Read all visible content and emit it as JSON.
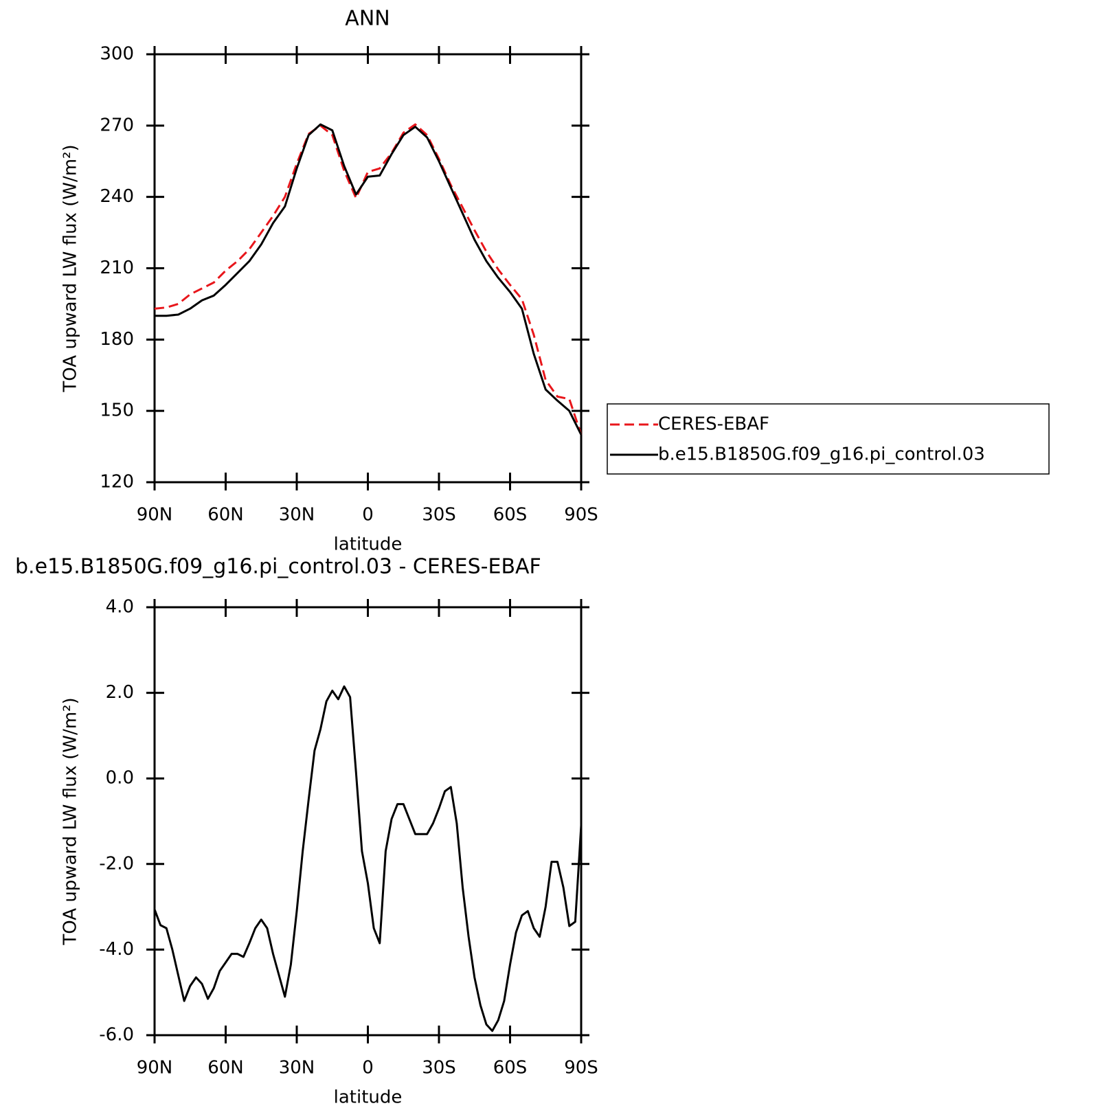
{
  "chart_data": [
    {
      "type": "line",
      "title": "ANN",
      "xlabel": "latitude",
      "ylabel": "TOA upward LW flux (W/m²)",
      "x": [
        90,
        85,
        80,
        75,
        70,
        65,
        60,
        55,
        50,
        45,
        40,
        35,
        30,
        25,
        20,
        15,
        10,
        5,
        0,
        -5,
        -10,
        -15,
        -20,
        -25,
        -30,
        -35,
        -40,
        -45,
        -50,
        -55,
        -60,
        -65,
        -70,
        -75,
        -80,
        -85,
        -90
      ],
      "xlim": [
        90,
        -90
      ],
      "xticks": [
        {
          "value": 90,
          "label": "90N"
        },
        {
          "value": 60,
          "label": "60N"
        },
        {
          "value": 30,
          "label": "30N"
        },
        0,
        {
          "value": -30,
          "label": "30S"
        },
        {
          "value": -60,
          "label": "60S"
        },
        {
          "value": -90,
          "label": "90S"
        }
      ],
      "ylim": [
        120,
        300
      ],
      "yticks": [
        120,
        150,
        180,
        210,
        240,
        270,
        300
      ],
      "legend": "right",
      "series": [
        {
          "name": "CERES-EBAF",
          "color": "#e8161b",
          "linestyle": "dashed",
          "values": [
            193,
            193.5,
            195,
            199,
            201.5,
            204,
            209,
            213,
            218,
            225,
            232,
            240,
            254,
            266.5,
            270,
            266,
            251,
            239.5,
            250.5,
            252,
            258.5,
            267,
            270.5,
            266,
            256,
            245,
            235.5,
            226,
            217,
            209.5,
            203,
            197,
            182,
            163,
            156,
            155,
            140
          ]
        },
        {
          "name": "b.e15.B1850G.f09_g16.pi_control.03",
          "color": "#000000",
          "linestyle": "solid",
          "values": [
            190,
            190,
            190.5,
            193,
            196.5,
            198.5,
            203,
            208,
            213,
            220,
            229,
            236,
            252,
            266,
            270.5,
            268,
            253,
            241,
            248.5,
            249,
            258,
            266,
            269.5,
            265,
            255,
            244,
            233,
            222,
            213,
            206,
            200,
            193,
            174,
            159,
            154.3,
            150,
            140
          ]
        }
      ]
    },
    {
      "type": "line",
      "title": "b.e15.B1850G.f09_g16.pi_control.03 - CERES-EBAF",
      "xlabel": "latitude",
      "ylabel": "TOA upward LW flux (W/m²)",
      "x": [
        90,
        87.5,
        85,
        82.5,
        80,
        77.5,
        75,
        72.5,
        70,
        67.5,
        65,
        62.5,
        60,
        57.5,
        55,
        52.5,
        50,
        47.5,
        45,
        42.5,
        40,
        37.5,
        35,
        32.5,
        30,
        27.5,
        25,
        22.5,
        20,
        17.5,
        15,
        12.5,
        10,
        7.5,
        5,
        2.5,
        0,
        -2.5,
        -5,
        -7.5,
        -10,
        -12.5,
        -15,
        -17.5,
        -20,
        -22.5,
        -25,
        -27.5,
        -30,
        -32.5,
        -35,
        -37.5,
        -40,
        -42.5,
        -45,
        -47.5,
        -50,
        -52.5,
        -55,
        -57.5,
        -60,
        -62.5,
        -65,
        -67.5,
        -70,
        -72.5,
        -75,
        -77.5,
        -80,
        -82.5,
        -85,
        -87.5,
        -90
      ],
      "xlim": [
        90,
        -90
      ],
      "xticks": [
        {
          "value": 90,
          "label": "90N"
        },
        {
          "value": 60,
          "label": "60N"
        },
        {
          "value": 30,
          "label": "30N"
        },
        0,
        {
          "value": -30,
          "label": "30S"
        },
        {
          "value": -60,
          "label": "60S"
        },
        {
          "value": -90,
          "label": "90S"
        }
      ],
      "ylim": [
        -6,
        4
      ],
      "yticks": [
        {
          "value": -6,
          "label": "-6.0"
        },
        {
          "value": -4,
          "label": "-4.0"
        },
        {
          "value": -2,
          "label": "-2.0"
        },
        {
          "value": 0,
          "label": "0.0"
        },
        {
          "value": 2,
          "label": "2.0"
        },
        {
          "value": 4,
          "label": "4.0"
        }
      ],
      "series": [
        {
          "color": "#000000",
          "linestyle": "solid",
          "values": [
            -3.06,
            -3.43,
            -3.5,
            -4.0,
            -4.6,
            -5.2,
            -4.85,
            -4.65,
            -4.8,
            -5.15,
            -4.9,
            -4.5,
            -4.3,
            -4.1,
            -4.1,
            -4.17,
            -3.85,
            -3.5,
            -3.3,
            -3.5,
            -4.1,
            -4.6,
            -5.1,
            -4.35,
            -3.1,
            -1.7,
            -0.5,
            0.65,
            1.15,
            1.8,
            2.05,
            1.85,
            2.15,
            1.9,
            0.15,
            -1.7,
            -2.45,
            -3.5,
            -3.85,
            -1.7,
            -0.95,
            -0.6,
            -0.6,
            -0.95,
            -1.3,
            -1.3,
            -1.3,
            -1.05,
            -0.7,
            -0.3,
            -0.2,
            -1.05,
            -2.55,
            -3.7,
            -4.65,
            -5.3,
            -5.75,
            -5.9,
            -5.65,
            -5.2,
            -4.35,
            -3.6,
            -3.2,
            -3.1,
            -3.5,
            -3.7,
            -3.0,
            -1.95,
            -1.95,
            -2.55,
            -3.45,
            -3.35,
            -1.1
          ]
        }
      ]
    }
  ]
}
